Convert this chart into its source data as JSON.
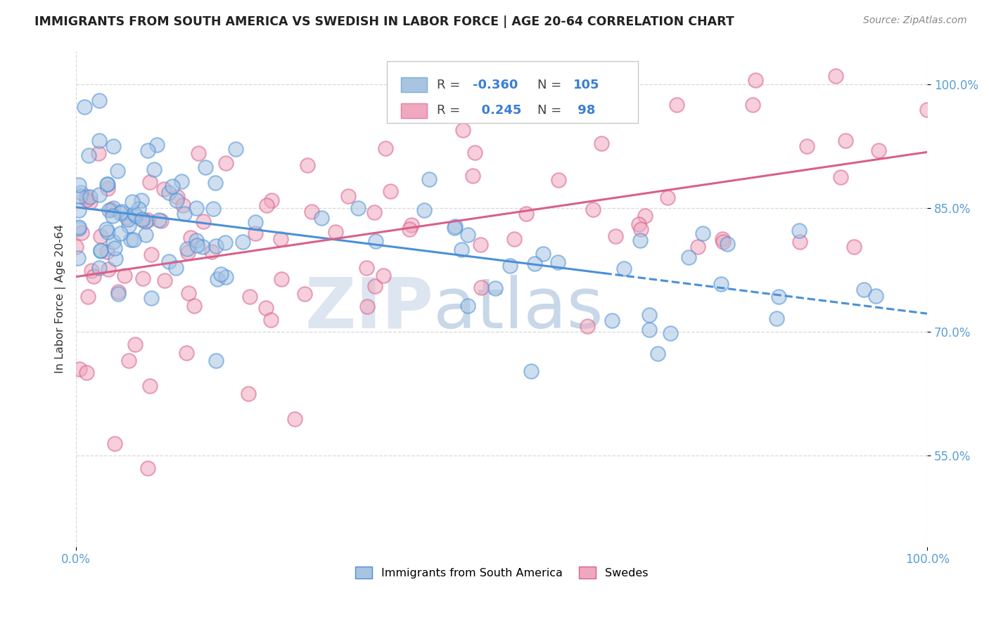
{
  "title": "IMMIGRANTS FROM SOUTH AMERICA VS SWEDISH IN LABOR FORCE | AGE 20-64 CORRELATION CHART",
  "source": "Source: ZipAtlas.com",
  "ylabel": "In Labor Force | Age 20-64",
  "xlim": [
    0.0,
    1.0
  ],
  "ylim": [
    0.44,
    1.04
  ],
  "xtick_labels": [
    "0.0%",
    "100.0%"
  ],
  "ytick_positions": [
    0.55,
    0.7,
    0.85,
    1.0
  ],
  "r_blue": -0.36,
  "n_blue": 105,
  "r_pink": 0.245,
  "n_pink": 98,
  "blue_color": "#a8c4e0",
  "blue_line_color": "#4a90d9",
  "pink_color": "#f0a8be",
  "pink_line_color": "#d9608a",
  "tick_color": "#5a9fd4",
  "grid_color": "#d8d8d8",
  "title_color": "#222222",
  "source_color": "#888888",
  "watermark_zip_color": "#dde5f0",
  "watermark_atlas_color": "#c8d8e8"
}
